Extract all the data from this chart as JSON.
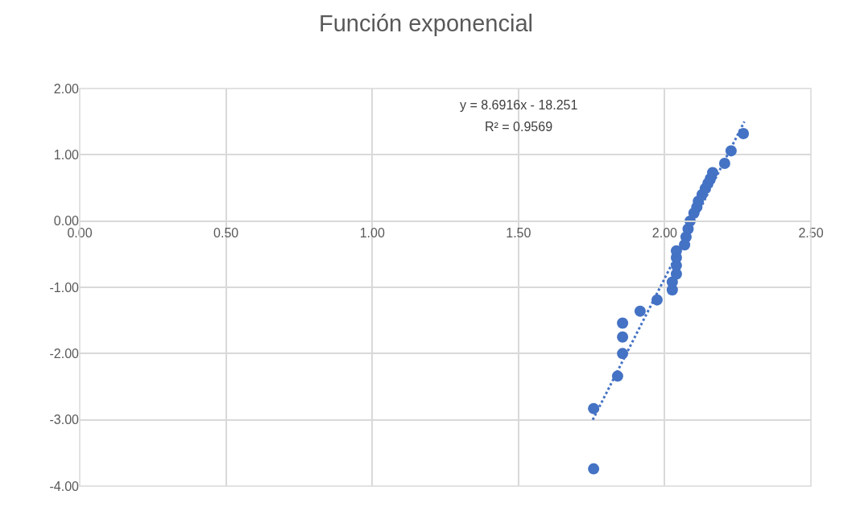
{
  "chart_data": {
    "type": "scatter",
    "title": "Función exponencial",
    "x": [
      1.757,
      1.757,
      1.839,
      1.856,
      1.856,
      1.856,
      1.916,
      1.974,
      2.026,
      2.026,
      2.04,
      2.04,
      2.04,
      2.04,
      2.068,
      2.073,
      2.08,
      2.087,
      2.1,
      2.11,
      2.115,
      2.128,
      2.139,
      2.148,
      2.156,
      2.164,
      2.205,
      2.227,
      2.269
    ],
    "series": [
      {
        "color": "#4472c4",
        "marker": "circle",
        "values": [
          -3.74,
          -2.83,
          -2.34,
          -2.0,
          -1.75,
          -1.54,
          -1.36,
          -1.19,
          -1.04,
          -0.92,
          -0.8,
          -0.67,
          -0.55,
          -0.45,
          -0.36,
          -0.24,
          -0.12,
          0.0,
          0.12,
          0.21,
          0.3,
          0.4,
          0.49,
          0.57,
          0.64,
          0.73,
          0.87,
          1.06,
          1.32
        ]
      },
      {
        "type": "line",
        "marker": "none",
        "line_style": "dotted",
        "color": "#4472c4",
        "x": [
          1.754,
          2.2724
        ],
        "values": [
          -3.0,
          1.5
        ]
      }
    ],
    "annotations": [
      "y = 8.6916x - 18.251",
      "R² = 0.9569"
    ],
    "xlim": [
      0,
      2.5
    ],
    "ylim": [
      -4,
      2
    ],
    "xticks": [
      {
        "value": 0,
        "label": "0.00"
      },
      {
        "value": 0.5,
        "label": "0.50"
      },
      {
        "value": 1,
        "label": "1.00"
      },
      {
        "value": 1.5,
        "label": "1.50"
      },
      {
        "value": 2,
        "label": "2.00"
      },
      {
        "value": 2.5,
        "label": "2.50"
      }
    ],
    "yticks": [
      {
        "value": -4,
        "label": "-4.00"
      },
      {
        "value": -3,
        "label": "-3.00"
      },
      {
        "value": -2,
        "label": "-2.00"
      },
      {
        "value": -1,
        "label": "-1.00"
      },
      {
        "value": 0,
        "label": "0.00"
      },
      {
        "value": 1,
        "label": "1.00"
      },
      {
        "value": 2,
        "label": "2.00"
      }
    ],
    "grid": true
  }
}
